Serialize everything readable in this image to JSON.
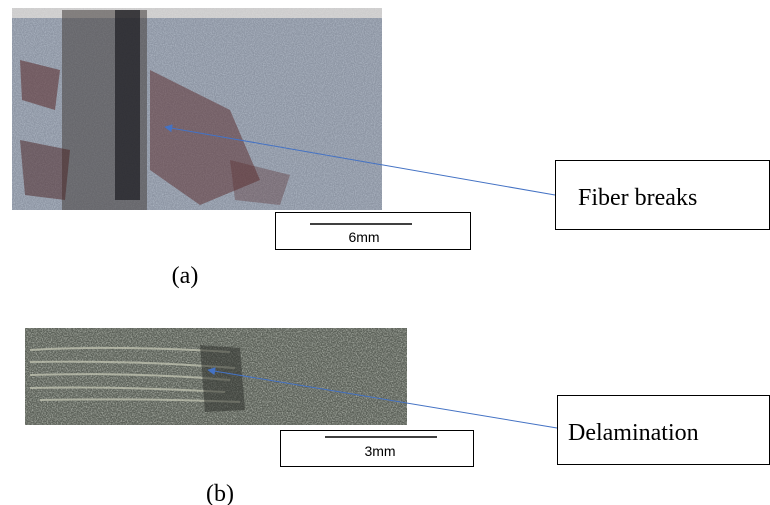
{
  "panels": [
    {
      "label": "(a)",
      "scale_bar": "6mm",
      "annotation": "Fiber breaks"
    },
    {
      "label": "(b)",
      "scale_bar": "3mm",
      "annotation": "Delamination"
    }
  ]
}
